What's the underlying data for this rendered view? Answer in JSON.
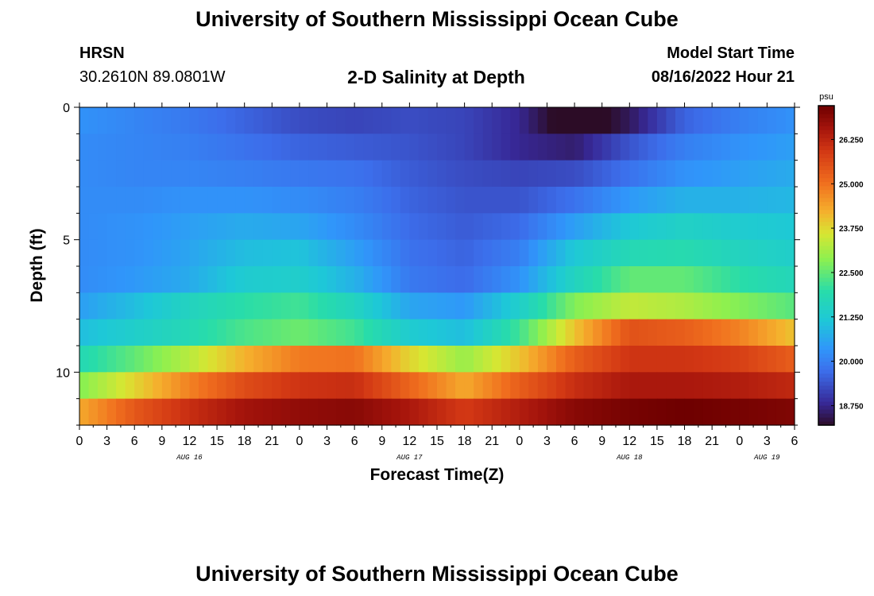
{
  "header": {
    "title": "University of Southern Mississippi Ocean Cube",
    "station": "HRSN",
    "coordinates": "30.2610N  89.0801W",
    "plot_title": "2-D Salinity at Depth",
    "model_start_label": "Model Start Time",
    "model_start_value": "08/16/2022 Hour 21"
  },
  "footer": {
    "title": "University of Southern Mississippi Ocean Cube"
  },
  "chart_data": {
    "type": "heatmap",
    "title": "2-D Salinity at Depth",
    "xlabel": "Forecast Time(Z)",
    "ylabel": "Depth (ft)",
    "x_range_hours": [
      0,
      78
    ],
    "y_range_ft": [
      0,
      12
    ],
    "y_ticks": [
      0,
      5,
      10
    ],
    "x_tick_hours": [
      0,
      3,
      6,
      9,
      12,
      15,
      18,
      21,
      24,
      27,
      30,
      33,
      36,
      39,
      42,
      45,
      48,
      51,
      54,
      57,
      60,
      63,
      66,
      69,
      72,
      75,
      78
    ],
    "x_tick_labels": [
      "0",
      "3",
      "6",
      "9",
      "12",
      "15",
      "18",
      "21",
      "0",
      "3",
      "6",
      "9",
      "12",
      "15",
      "18",
      "21",
      "0",
      "3",
      "6",
      "9",
      "12",
      "15",
      "18",
      "21",
      "0",
      "3",
      "6"
    ],
    "date_labels": [
      {
        "label": "AUG 16",
        "hour": 12
      },
      {
        "label": "AUG 17",
        "hour": 36
      },
      {
        "label": "AUG 18",
        "hour": 60
      },
      {
        "label": "AUG 19",
        "hour": 75
      }
    ],
    "colorbar": {
      "unit": "psu",
      "min": 18.2,
      "max": 27.2,
      "ticks": [
        18.75,
        20.0,
        21.25,
        22.5,
        23.75,
        25.0,
        26.25
      ],
      "tick_labels": [
        "18.750",
        "20.000",
        "21.250",
        "22.500",
        "23.750",
        "25.000",
        "26.250"
      ]
    },
    "time_knots_hours": [
      0,
      6,
      12,
      18,
      24,
      30,
      36,
      42,
      48,
      54,
      60,
      66,
      72,
      78
    ],
    "depth_layers_ft": [
      0.5,
      1.5,
      2.5,
      3.5,
      4.5,
      5.5,
      6.5,
      7.5,
      8.5,
      9.5,
      10.5,
      11.5
    ],
    "salinity_psu": [
      [
        20.3,
        20.1,
        19.9,
        19.6,
        19.3,
        19.2,
        19.3,
        19.2,
        18.8,
        17.8,
        18.5,
        19.6,
        20.0,
        20.3
      ],
      [
        20.2,
        20.1,
        20.0,
        19.8,
        19.6,
        19.5,
        19.4,
        19.2,
        18.8,
        18.6,
        19.4,
        20.0,
        20.3,
        20.5
      ],
      [
        20.2,
        20.1,
        20.1,
        20.0,
        19.9,
        19.8,
        19.5,
        19.3,
        19.2,
        19.3,
        19.8,
        20.3,
        20.5,
        20.7
      ],
      [
        20.2,
        20.2,
        20.3,
        20.3,
        20.2,
        20.0,
        19.6,
        19.4,
        19.4,
        19.8,
        20.4,
        20.8,
        20.8,
        20.9
      ],
      [
        20.2,
        20.3,
        20.5,
        20.7,
        20.6,
        20.2,
        19.7,
        19.5,
        19.7,
        20.5,
        21.2,
        21.5,
        21.3,
        21.2
      ],
      [
        20.2,
        20.3,
        20.6,
        21.0,
        21.1,
        20.5,
        19.8,
        19.6,
        20.0,
        21.2,
        21.8,
        21.9,
        21.6,
        21.4
      ],
      [
        20.2,
        20.4,
        20.7,
        21.3,
        21.4,
        20.8,
        19.9,
        19.7,
        20.3,
        21.6,
        22.5,
        22.5,
        22.0,
        21.7
      ],
      [
        20.5,
        21.0,
        21.6,
        22.0,
        22.2,
        21.6,
        20.6,
        20.4,
        21.4,
        22.8,
        23.4,
        23.2,
        22.8,
        22.4
      ],
      [
        21.0,
        21.4,
        21.8,
        22.3,
        22.6,
        22.2,
        21.3,
        21.0,
        22.2,
        24.0,
        25.5,
        25.3,
        24.8,
        24.0
      ],
      [
        21.8,
        22.5,
        23.3,
        24.2,
        24.9,
        25.0,
        23.8,
        23.0,
        24.0,
        25.3,
        26.0,
        26.0,
        25.8,
        25.3
      ],
      [
        22.8,
        23.8,
        24.8,
        25.6,
        26.0,
        26.1,
        25.2,
        24.3,
        25.3,
        26.1,
        26.5,
        26.5,
        26.4,
        26.2
      ],
      [
        24.3,
        25.4,
        26.1,
        26.6,
        26.8,
        26.9,
        26.5,
        25.9,
        26.4,
        26.9,
        27.1,
        27.2,
        27.1,
        27.0
      ]
    ]
  }
}
